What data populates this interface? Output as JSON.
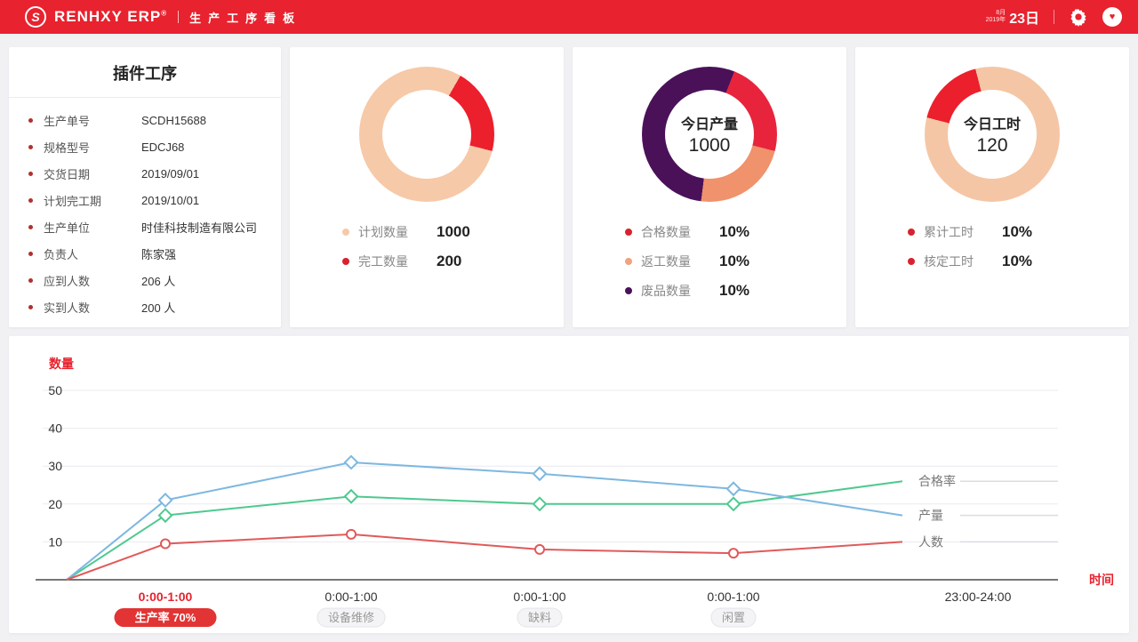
{
  "header": {
    "brand": "RENHXY ERP",
    "subtitle": "生产工序看板",
    "date_month": "8月",
    "date_year": "2019年",
    "date_day": "23日",
    "gear_icon": "settings-gear",
    "avatar_icon": "user-avatar",
    "header_color": "#e8222e"
  },
  "info_card": {
    "title": "插件工序",
    "rows": [
      {
        "label": "生产单号",
        "value": "SCDH15688"
      },
      {
        "label": "规格型号",
        "value": "EDCJ68"
      },
      {
        "label": "交货日期",
        "value": "2019/09/01"
      },
      {
        "label": "计划完工期",
        "value": "2019/10/01"
      },
      {
        "label": "生产单位",
        "value": "时佳科技制造有限公司"
      },
      {
        "label": "负责人",
        "value": "陈家强"
      },
      {
        "label": "应到人数",
        "value": "206 人"
      },
      {
        "label": "实到人数",
        "value": "200 人"
      }
    ]
  },
  "donuts": [
    {
      "center_label": "",
      "center_value": "",
      "ring": [
        {
          "color": "#f6c9a8",
          "from": 0,
          "to": 0.083
        },
        {
          "color": "#ec1f2d",
          "from": 0.083,
          "to": 0.29
        },
        {
          "color": "#f6c9a8",
          "from": 0.29,
          "to": 1
        }
      ],
      "legend": [
        {
          "color": "#f6c9a8",
          "label": "计划数量",
          "value": "1000"
        },
        {
          "color": "#d8222e",
          "label": "完工数量",
          "value": "200"
        }
      ]
    },
    {
      "center_label": "今日产量",
      "center_value": "1000",
      "ring": [
        {
          "color": "#4a1159",
          "from": 0,
          "to": 0.06
        },
        {
          "color": "#e8243c",
          "from": 0.06,
          "to": 0.29
        },
        {
          "color": "#f0926b",
          "from": 0.29,
          "to": 0.52
        },
        {
          "color": "#4a1159",
          "from": 0.52,
          "to": 1
        }
      ],
      "legend": [
        {
          "color": "#d8222e",
          "label": "合格数量",
          "value": "10%"
        },
        {
          "color": "#f0a37c",
          "label": "返工数量",
          "value": "10%"
        },
        {
          "color": "#4a1159",
          "label": "废品数量",
          "value": "10%"
        }
      ]
    },
    {
      "center_label": "今日工时",
      "center_value": "120",
      "ring": [
        {
          "color": "#f5c6a5",
          "from": 0,
          "to": 0.79
        },
        {
          "color": "#ec1f2d",
          "from": 0.79,
          "to": 0.96
        },
        {
          "color": "#f5c6a5",
          "from": 0.96,
          "to": 1
        }
      ],
      "legend": [
        {
          "color": "#d8222e",
          "label": "累计工时",
          "value": "10%"
        },
        {
          "color": "#d8222e",
          "label": "核定工时",
          "value": "10%"
        }
      ]
    }
  ],
  "chart_data": {
    "type": "line",
    "title": "",
    "ylabel": "数量",
    "xlabel": "时间",
    "ylim": [
      0,
      50
    ],
    "yticks": [
      50,
      40,
      30,
      20,
      10
    ],
    "grid": true,
    "legend_position": "right-end-labels",
    "categories": [
      "0:00-1:00",
      "0:00-1:00",
      "0:00-1:00",
      "0:00-1:00",
      "23:00-24:00"
    ],
    "category_badges": [
      "生产率 70%",
      "设备维修",
      "缺料",
      "闲置",
      ""
    ],
    "first_category_highlight": "#e8222e",
    "series": [
      {
        "name": "合格率",
        "color": "#4ec98f",
        "marker": "diamond",
        "values": [
          0,
          17,
          22,
          20,
          20,
          26
        ]
      },
      {
        "name": "产量",
        "color": "#7db8e0",
        "marker": "diamond",
        "values": [
          0,
          21,
          31,
          28,
          24,
          17
        ]
      },
      {
        "name": "人数",
        "color": "#e05a5a",
        "marker": "circle",
        "values": [
          0,
          9.5,
          12,
          8,
          7,
          10
        ]
      }
    ],
    "series_note": "first value of each series is the shared 0 origin at the left axis"
  }
}
